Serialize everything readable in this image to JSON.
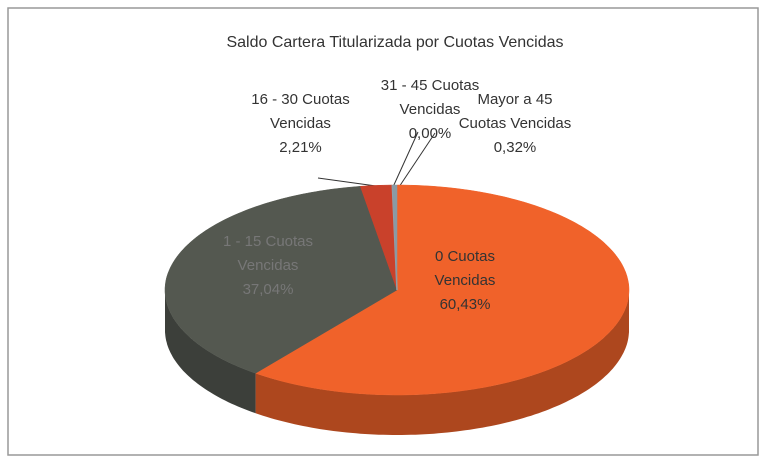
{
  "chart_data": {
    "type": "pie",
    "title": "Saldo Cartera Titularizada por Cuotas Vencidas",
    "categories": [
      "0 Cuotas Vencidas",
      "1 - 15 Cuotas Vencidas",
      "16 - 30 Cuotas Vencidas",
      "31 - 45 Cuotas Vencidas",
      "Mayor a 45 Cuotas Vencidas"
    ],
    "values": [
      60.43,
      37.04,
      2.21,
      0.0,
      0.32
    ],
    "value_labels": [
      "60,43%",
      "37,04%",
      "2,21%",
      "0,00%",
      "0,32%"
    ],
    "colors": [
      "#f0622a",
      "#545850",
      "#c9412b",
      "#9aa4aa",
      "#8a9aa4"
    ]
  }
}
